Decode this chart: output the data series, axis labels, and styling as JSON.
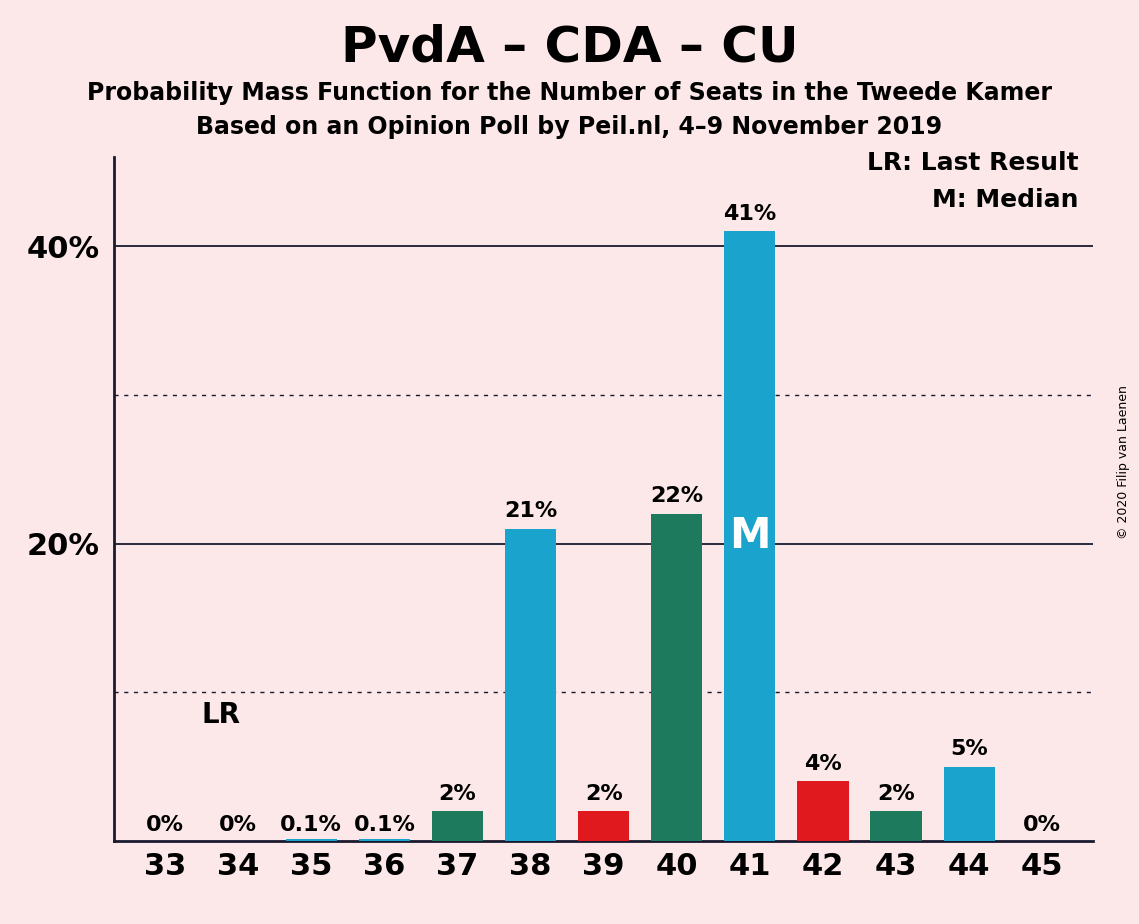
{
  "title": "PvdA – CDA – CU",
  "subtitle1": "Probability Mass Function for the Number of Seats in the Tweede Kamer",
  "subtitle2": "Based on an Opinion Poll by Peil.nl, 4–9 November 2019",
  "copyright": "© 2020 Filip van Laenen",
  "categories": [
    33,
    34,
    35,
    36,
    37,
    38,
    39,
    40,
    41,
    42,
    43,
    44,
    45
  ],
  "values": [
    0.0,
    0.0,
    0.1,
    0.1,
    2.0,
    21.0,
    2.0,
    22.0,
    41.0,
    4.0,
    2.0,
    5.0,
    0.0
  ],
  "bar_colors": [
    "#1aa3cc",
    "#1aa3cc",
    "#1aa3cc",
    "#1aa3cc",
    "#1e7a5c",
    "#1aa3cc",
    "#e0191e",
    "#1e7a5c",
    "#1aa3cc",
    "#e0191e",
    "#1e7a5c",
    "#1aa3cc",
    "#1aa3cc"
  ],
  "labels": [
    "0%",
    "0%",
    "0.1%",
    "0.1%",
    "2%",
    "21%",
    "2%",
    "22%",
    "41%",
    "4%",
    "2%",
    "5%",
    "0%"
  ],
  "background_color": "#fce8e8",
  "ylim": [
    0,
    46
  ],
  "yticks": [
    20,
    40
  ],
  "ytick_labels": [
    "20%",
    "40%"
  ],
  "dotted_yticks": [
    10,
    30
  ],
  "median_seat": 41,
  "median_label": "M",
  "legend_lr": "LR: Last Result",
  "legend_m": "M: Median",
  "title_fontsize": 36,
  "subtitle_fontsize": 17,
  "axis_label_fontsize": 22,
  "bar_label_fontsize": 16,
  "lr_fontsize": 20,
  "legend_fontsize": 18,
  "median_fontsize": 30
}
